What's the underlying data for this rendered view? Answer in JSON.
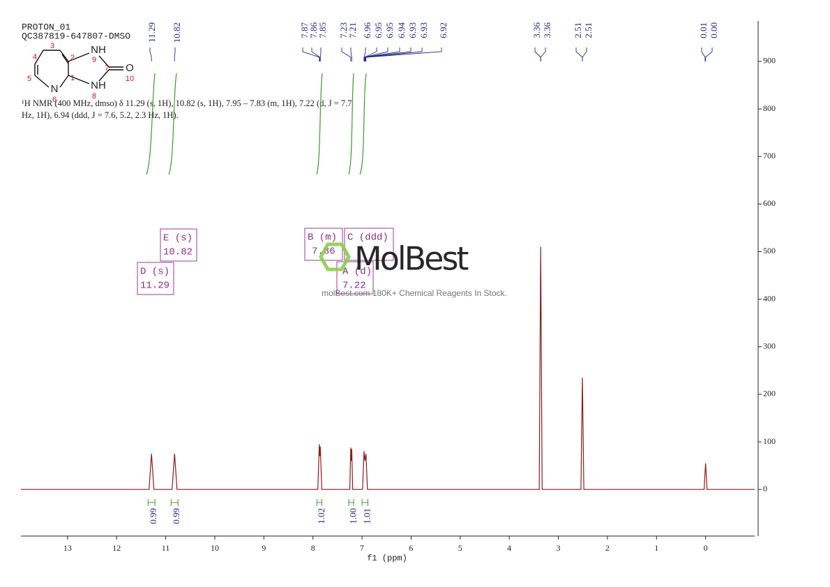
{
  "chart_data": {
    "type": "line",
    "title": "PROTON_01",
    "subtitle": "QC387819-647807-DMSO",
    "description": [
      "¹H NMR (400 MHz, dmso) δ 11.29 (s, 1H), 10.82 (s, 1H), 7.95 – 7.83 (m, 1H), 7.22 (d, J = 7.7",
      "Hz, 1H), 6.94 (ddd, J = 7.6, 5.2, 2.3 Hz, 1H)."
    ],
    "x_label": "f1 (ppm)",
    "color": "#8b1a1a",
    "x": [
      13.95,
      11.34,
      11.29,
      11.24,
      10.87,
      10.82,
      10.77,
      7.9,
      7.87,
      7.86,
      7.85,
      7.82,
      7.25,
      7.23,
      7.22,
      7.21,
      7.19,
      6.99,
      6.96,
      6.94,
      6.92,
      6.89,
      3.39,
      3.36,
      3.33,
      2.54,
      2.51,
      2.48,
      0.03,
      0.0,
      -0.03,
      -1.0
    ],
    "values": [
      0,
      0,
      75,
      0,
      0,
      75,
      0,
      0,
      95,
      70,
      90,
      0,
      0,
      88,
      60,
      85,
      0,
      0,
      80,
      60,
      75,
      0,
      0,
      510,
      0,
      0,
      235,
      0,
      0,
      55,
      0,
      0
    ],
    "xlim": [
      13.95,
      -1.0
    ],
    "ylim": [
      -98,
      985
    ],
    "xticks": [
      13,
      12,
      11,
      10,
      9,
      8,
      7,
      6,
      5,
      4,
      3,
      2,
      1,
      0
    ],
    "yticks": [
      0,
      100,
      200,
      300,
      400,
      500,
      600,
      700,
      800,
      900
    ],
    "peak_labels": [
      {
        "shift": 11.29,
        "label": "11.29"
      },
      {
        "shift": 10.82,
        "label": "10.82"
      },
      {
        "shift": 7.87,
        "label": "7.87"
      },
      {
        "shift": 7.86,
        "label": "7.86"
      },
      {
        "shift": 7.85,
        "label": "7.85"
      },
      {
        "shift": 7.23,
        "label": "7.23"
      },
      {
        "shift": 7.21,
        "label": "7.21"
      },
      {
        "shift": 6.96,
        "label": "6.96"
      },
      {
        "shift": 6.95,
        "label": "6.95"
      },
      {
        "shift": 6.95,
        "label": "6.95"
      },
      {
        "shift": 6.94,
        "label": "6.94"
      },
      {
        "shift": 6.93,
        "label": "6.93"
      },
      {
        "shift": 6.93,
        "label": "6.93"
      },
      {
        "shift": 6.92,
        "label": "6.92"
      },
      {
        "shift": 3.36,
        "label": "3.36"
      },
      {
        "shift": 3.36,
        "label": "3.36"
      },
      {
        "shift": 2.51,
        "label": "2.51"
      },
      {
        "shift": 2.51,
        "label": "2.51"
      },
      {
        "shift": 0.01,
        "label": "0.01"
      },
      {
        "shift": 0.0,
        "label": "0.00"
      }
    ],
    "integrals": [
      {
        "from": 11.36,
        "to": 11.22,
        "label": "0.99"
      },
      {
        "from": 10.89,
        "to": 10.75,
        "label": "0.99"
      },
      {
        "from": 7.92,
        "to": 7.82,
        "label": "1.02"
      },
      {
        "from": 7.27,
        "to": 7.17,
        "label": "1.00"
      },
      {
        "from": 7.0,
        "to": 6.88,
        "label": "1.01"
      }
    ]
  },
  "multiplets": [
    {
      "name": "D (s)",
      "shift": "11.29"
    },
    {
      "name": "E (s)",
      "shift": "10.82"
    },
    {
      "name": "B (m)",
      "shift": "7.86"
    },
    {
      "name": "C (ddd)"
    },
    {
      "name": "A (d)",
      "shift": "7.22"
    }
  ],
  "structure": {
    "labels": [
      "NH",
      "9",
      "7",
      "O",
      "10",
      "NH",
      "8",
      "N",
      "6",
      "5",
      "4",
      "3",
      "2",
      "1"
    ]
  },
  "watermark": {
    "brand": "MolBest",
    "tagline": "molBest.com 180K+ Chemical Reagents In Stock."
  }
}
